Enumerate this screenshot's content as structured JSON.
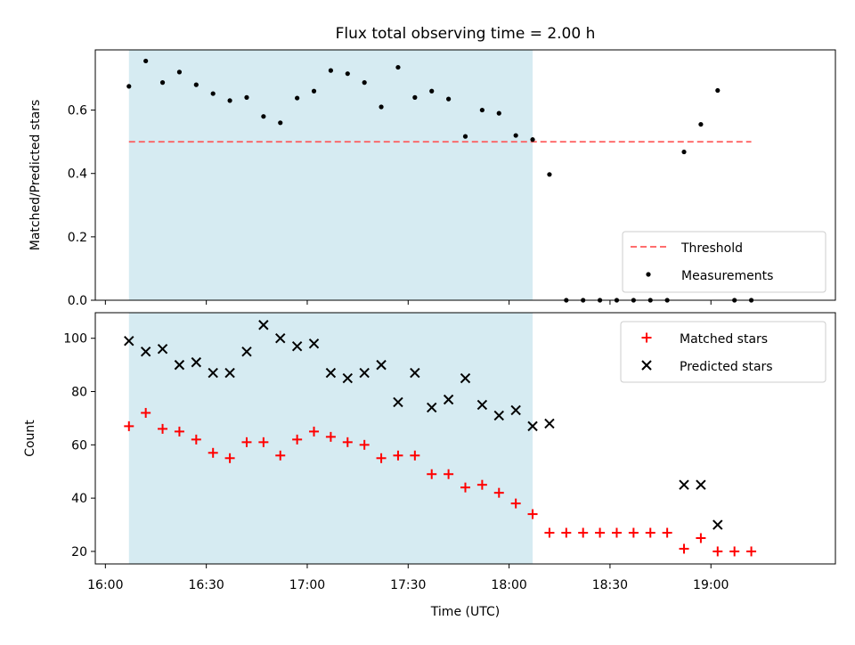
{
  "chart_data": [
    {
      "type": "scatter",
      "title": "Flux total observing time = 2.00 h",
      "xlabel": "",
      "ylabel": "Matched/Predicted stars",
      "xlim": [
        "15:57",
        "19:37"
      ],
      "ylim": [
        0,
        0.79
      ],
      "yticks": [
        "0.0",
        "0.2",
        "0.4",
        "0.6"
      ],
      "grid": false,
      "legend_position": "lower-right",
      "shaded_span": {
        "from": "16:07",
        "to": "18:07",
        "color": "#add8e6"
      },
      "threshold": {
        "name": "Threshold",
        "value": 0.5,
        "x_from": "16:07",
        "x_to": "19:12",
        "color": "#ff5555"
      },
      "series": [
        {
          "name": "Measurements",
          "color": "#000000",
          "x": [
            "16:07",
            "16:12",
            "16:17",
            "16:22",
            "16:27",
            "16:32",
            "16:37",
            "16:42",
            "16:47",
            "16:52",
            "16:57",
            "17:02",
            "17:07",
            "17:12",
            "17:17",
            "17:22",
            "17:27",
            "17:32",
            "17:37",
            "17:42",
            "17:47",
            "17:52",
            "17:57",
            "18:02",
            "18:07",
            "18:12",
            "18:17",
            "18:22",
            "18:27",
            "18:32",
            "18:37",
            "18:42",
            "18:47",
            "18:52",
            "18:57",
            "19:02",
            "19:07",
            "19:12"
          ],
          "y": [
            0.675,
            0.755,
            0.687,
            0.72,
            0.68,
            0.652,
            0.63,
            0.64,
            0.58,
            0.56,
            0.638,
            0.66,
            0.725,
            0.715,
            0.687,
            0.61,
            0.735,
            0.64,
            0.66,
            0.635,
            0.517,
            0.6,
            0.59,
            0.52,
            0.507,
            0.397,
            0,
            0,
            0,
            0,
            0,
            0,
            0,
            0.468,
            0.555,
            0.662,
            0,
            0
          ]
        }
      ]
    },
    {
      "type": "scatter",
      "title": "",
      "xlabel": "Time (UTC)",
      "ylabel": "Count",
      "xlim": [
        "15:57",
        "19:37"
      ],
      "ylim": [
        15.3,
        109.6
      ],
      "yticks": [
        "20",
        "40",
        "60",
        "80",
        "100"
      ],
      "xticks": [
        "16:00",
        "16:30",
        "17:00",
        "17:30",
        "18:00",
        "18:30",
        "19:00"
      ],
      "grid": false,
      "legend_position": "upper-right",
      "shaded_span": {
        "from": "16:07",
        "to": "18:07",
        "color": "#add8e6"
      },
      "series": [
        {
          "name": "Matched stars",
          "marker": "plus",
          "color": "#ff0000",
          "x": [
            "16:07",
            "16:12",
            "16:17",
            "16:22",
            "16:27",
            "16:32",
            "16:37",
            "16:42",
            "16:47",
            "16:52",
            "16:57",
            "17:02",
            "17:07",
            "17:12",
            "17:17",
            "17:22",
            "17:27",
            "17:32",
            "17:37",
            "17:42",
            "17:47",
            "17:52",
            "17:57",
            "18:02",
            "18:07",
            "18:12",
            "18:17",
            "18:22",
            "18:27",
            "18:32",
            "18:37",
            "18:42",
            "18:47",
            "18:52",
            "18:57",
            "19:02",
            "19:07",
            "19:12"
          ],
          "y": [
            67,
            72,
            66,
            65,
            62,
            57,
            55,
            61,
            61,
            56,
            62,
            65,
            63,
            61,
            60,
            55,
            56,
            56,
            49,
            49,
            44,
            45,
            42,
            38,
            34,
            27,
            27,
            27,
            27,
            27,
            27,
            27,
            27,
            21,
            25,
            20,
            20,
            20
          ]
        },
        {
          "name": "Predicted stars",
          "marker": "x",
          "color": "#000000",
          "x": [
            "16:07",
            "16:12",
            "16:17",
            "16:22",
            "16:27",
            "16:32",
            "16:37",
            "16:42",
            "16:47",
            "16:52",
            "16:57",
            "17:02",
            "17:07",
            "17:12",
            "17:17",
            "17:22",
            "17:27",
            "17:32",
            "17:37",
            "17:42",
            "17:47",
            "17:52",
            "17:57",
            "18:02",
            "18:07",
            "18:12",
            "18:52",
            "18:57",
            "19:02"
          ],
          "y": [
            99,
            95,
            96,
            90,
            91,
            87,
            87,
            95,
            105,
            100,
            97,
            98,
            87,
            85,
            87,
            90,
            76,
            87,
            74,
            77,
            85,
            75,
            71,
            73,
            67,
            68,
            45,
            45,
            30
          ]
        }
      ]
    }
  ]
}
